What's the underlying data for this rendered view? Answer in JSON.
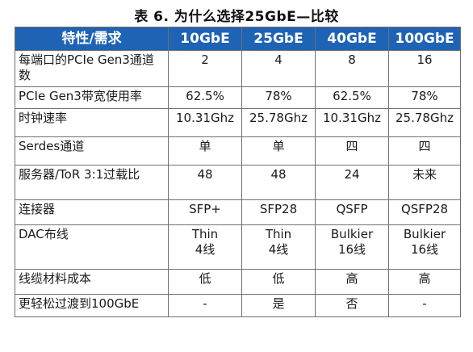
{
  "caption": "表 6. 为什么选择25GbE—比较",
  "table": {
    "headers": [
      "特性/需求",
      "10GbE",
      "25GbE",
      "40GbE",
      "100GbE"
    ],
    "rows": [
      {
        "label": "每端口的PCIe Gen3通道数",
        "values": [
          "2",
          "4",
          "8",
          "16"
        ]
      },
      {
        "label": "PCIe Gen3带宽使用率",
        "values": [
          "62.5%",
          "78%",
          "62.5%",
          "78%"
        ]
      },
      {
        "label": "时钟速率",
        "values": [
          "10.31Ghz",
          "25.78Ghz",
          "10.31Ghz",
          "25.78Ghz"
        ]
      },
      {
        "label": "Serdes通道",
        "values": [
          "单",
          "单",
          "四",
          "四"
        ]
      },
      {
        "label": "服务器/ToR 3:1过载比",
        "values": [
          "48",
          "48",
          "24",
          "未来"
        ]
      },
      {
        "label": "连接器",
        "values": [
          "SFP+",
          "SFP28",
          "QSFP",
          "QSFP28"
        ]
      },
      {
        "label": "DAC布线",
        "values": [
          "Thin\n4线",
          "Thin\n4线",
          "Bulkier\n16线",
          "Bulkier\n16线"
        ]
      },
      {
        "label": "线缆材料成本",
        "values": [
          "低",
          "低",
          "高",
          "高"
        ]
      },
      {
        "label": "更轻松过渡到100GbE",
        "values": [
          "-",
          "是",
          "否",
          "-"
        ]
      }
    ]
  }
}
